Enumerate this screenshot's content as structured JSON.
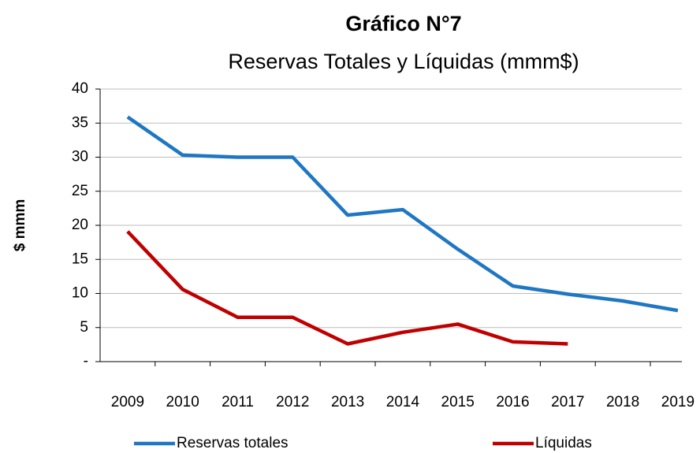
{
  "chart_data": {
    "type": "line",
    "title": "Gráfico N°7",
    "subtitle": "Reservas Totales y Líquidas (mmm$)",
    "y_label": "$ mmm",
    "categories": [
      "2009",
      "2010",
      "2011",
      "2012",
      "2013",
      "2014",
      "2015",
      "2016",
      "2017",
      "2018",
      "2019"
    ],
    "series": [
      {
        "name": "Reservas totales",
        "color": "#1f77c4",
        "values": [
          35.9,
          30.3,
          30.0,
          30.0,
          21.5,
          22.3,
          16.5,
          11.1,
          9.9,
          8.9,
          7.5
        ]
      },
      {
        "name": "Líquidas",
        "color": "#c00000",
        "values": [
          19.1,
          10.6,
          6.5,
          6.5,
          2.6,
          4.3,
          5.5,
          2.9,
          2.6,
          null,
          null
        ]
      }
    ],
    "ylim": [
      0,
      40
    ],
    "yticks": [
      {
        "value": 0,
        "label": "-"
      },
      5,
      10,
      15,
      20,
      25,
      30,
      35,
      40
    ],
    "grid": true,
    "legend": "bottom"
  }
}
